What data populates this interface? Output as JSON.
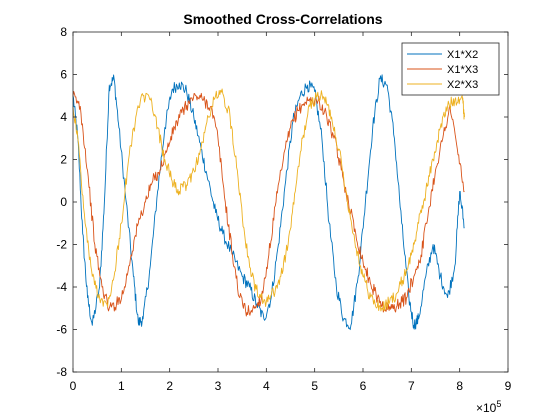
{
  "chart_data": {
    "type": "line",
    "title": "Smoothed Cross-Correlations",
    "xlabel": "",
    "ylabel": "",
    "xlim": [
      0,
      900000
    ],
    "ylim": [
      -8,
      8
    ],
    "x_ticks": [
      0,
      100000,
      200000,
      300000,
      400000,
      500000,
      600000,
      700000,
      800000,
      900000
    ],
    "x_tick_labels": [
      "0",
      "1",
      "2",
      "3",
      "4",
      "5",
      "6",
      "7",
      "8",
      "9"
    ],
    "x_exponent_base": "×10",
    "x_exponent_power": "5",
    "y_ticks": [
      -8,
      -6,
      -4,
      -2,
      0,
      2,
      4,
      6,
      8
    ],
    "y_tick_labels": [
      "-8",
      "-6",
      "-4",
      "-2",
      "0",
      "2",
      "4",
      "6",
      "8"
    ],
    "grid": false,
    "legend_position": "top-right",
    "series": [
      {
        "name": "X1*X2",
        "color": "#0072BD",
        "x": [
          0,
          10000,
          20000,
          30000,
          40000,
          55000,
          65000,
          75000,
          85000,
          95000,
          110000,
          125000,
          135000,
          145000,
          160000,
          175000,
          190000,
          205000,
          220000,
          235000,
          250000,
          265000,
          280000,
          295000,
          310000,
          330000,
          350000,
          365000,
          380000,
          395000,
          410000,
          425000,
          440000,
          455000,
          470000,
          485000,
          500000,
          515000,
          530000,
          545000,
          560000,
          575000,
          590000,
          605000,
          620000,
          635000,
          650000,
          665000,
          680000,
          695000,
          705000,
          715000,
          730000,
          745000,
          760000,
          775000,
          790000,
          800000,
          810000
        ],
        "y": [
          5.0,
          3.0,
          -1.5,
          -4.5,
          -5.8,
          -4.0,
          0.0,
          5.5,
          5.8,
          3.5,
          0.0,
          -3.5,
          -5.7,
          -5.5,
          -3.0,
          0.5,
          3.5,
          5.3,
          5.6,
          5.2,
          4.0,
          2.5,
          1.0,
          -0.5,
          -1.5,
          -2.5,
          -3.5,
          -4.0,
          -4.8,
          -5.5,
          -4.5,
          -2.0,
          1.0,
          3.8,
          5.0,
          5.5,
          5.2,
          3.0,
          -1.0,
          -4.0,
          -5.5,
          -5.8,
          -3.5,
          0.0,
          3.5,
          5.8,
          5.5,
          3.0,
          -1.0,
          -4.5,
          -5.8,
          -5.5,
          -3.5,
          -2.0,
          -3.5,
          -4.5,
          -3.0,
          0.5,
          -1.2
        ]
      },
      {
        "name": "X1*X3",
        "color": "#D95319",
        "x": [
          0,
          15000,
          30000,
          45000,
          60000,
          75000,
          90000,
          105000,
          120000,
          135000,
          150000,
          165000,
          180000,
          195000,
          210000,
          225000,
          240000,
          255000,
          270000,
          285000,
          300000,
          315000,
          330000,
          345000,
          360000,
          375000,
          390000,
          405000,
          420000,
          435000,
          450000,
          465000,
          480000,
          495000,
          510000,
          525000,
          540000,
          555000,
          570000,
          585000,
          600000,
          615000,
          630000,
          645000,
          660000,
          675000,
          690000,
          705000,
          720000,
          735000,
          750000,
          765000,
          780000,
          795000,
          810000
        ],
        "y": [
          5.0,
          4.5,
          1.5,
          -2.0,
          -4.0,
          -5.0,
          -4.8,
          -4.2,
          -2.5,
          -1.0,
          0.0,
          1.0,
          1.5,
          2.5,
          3.5,
          4.2,
          4.7,
          5.0,
          4.8,
          4.5,
          3.0,
          0.0,
          -2.5,
          -4.5,
          -5.2,
          -5.0,
          -4.5,
          -2.5,
          0.0,
          2.0,
          3.5,
          4.3,
          4.7,
          4.8,
          4.7,
          4.0,
          3.0,
          1.5,
          0.0,
          -1.5,
          -2.8,
          -3.8,
          -4.5,
          -5.0,
          -5.0,
          -4.8,
          -4.5,
          -3.5,
          -2.5,
          -0.5,
          1.5,
          3.0,
          4.5,
          2.5,
          0.5
        ]
      },
      {
        "name": "X2*X3",
        "color": "#EDB120",
        "x": [
          0,
          10000,
          25000,
          40000,
          55000,
          70000,
          85000,
          100000,
          115000,
          130000,
          145000,
          160000,
          175000,
          190000,
          205000,
          220000,
          235000,
          250000,
          265000,
          280000,
          295000,
          310000,
          325000,
          340000,
          355000,
          370000,
          385000,
          400000,
          415000,
          430000,
          445000,
          460000,
          475000,
          490000,
          505000,
          520000,
          535000,
          550000,
          565000,
          580000,
          595000,
          610000,
          625000,
          640000,
          655000,
          670000,
          685000,
          700000,
          715000,
          730000,
          745000,
          760000,
          775000,
          790000,
          805000,
          810000
        ],
        "y": [
          4.5,
          3.0,
          -1.0,
          -3.5,
          -4.5,
          -4.8,
          -3.5,
          -1.0,
          2.0,
          4.0,
          5.0,
          4.8,
          3.5,
          2.0,
          1.0,
          0.5,
          0.8,
          1.5,
          2.5,
          4.0,
          5.0,
          5.1,
          4.0,
          1.5,
          -1.5,
          -3.5,
          -4.5,
          -4.7,
          -4.3,
          -3.5,
          -2.0,
          0.5,
          3.0,
          4.5,
          5.0,
          4.9,
          4.0,
          2.5,
          0.5,
          -1.5,
          -3.0,
          -4.2,
          -4.8,
          -5.0,
          -4.7,
          -4.3,
          -3.5,
          -2.5,
          -1.0,
          0.5,
          2.0,
          3.5,
          4.5,
          4.8,
          5.0,
          4.0
        ]
      }
    ]
  }
}
